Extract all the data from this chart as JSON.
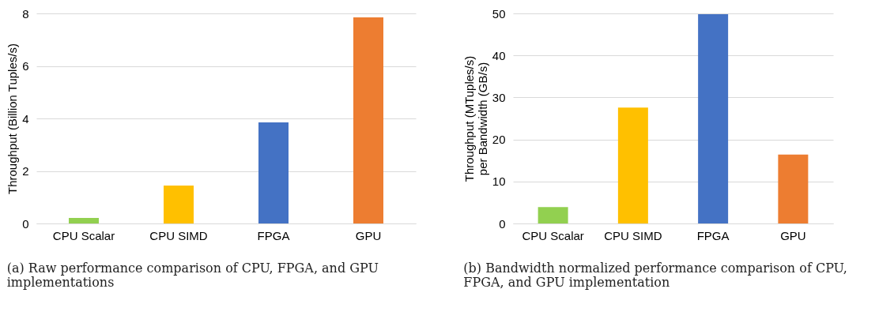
{
  "chart_data": [
    {
      "type": "bar",
      "categories": [
        "CPU Scalar",
        "CPU SIMD",
        "FPGA",
        "GPU"
      ],
      "values": [
        0.21,
        1.44,
        3.85,
        7.85
      ],
      "colors": [
        "#92d050",
        "#ffc000",
        "#4472c4",
        "#ed7d31"
      ],
      "ylabel": "Throughput (Billion Tuples/s)",
      "ylim": [
        0,
        8
      ],
      "yticks": [
        0,
        2,
        4,
        6,
        8
      ],
      "grid": "y",
      "annotations": [
        "(a) Raw performance comparison of CPU, FPGA, and GPU implementations"
      ]
    },
    {
      "type": "bar",
      "categories": [
        "CPU Scalar",
        "CPU SIMD",
        "FPGA",
        "GPU"
      ],
      "values": [
        3.9,
        27.6,
        49.8,
        16.4
      ],
      "colors": [
        "#92d050",
        "#ffc000",
        "#4472c4",
        "#ed7d31"
      ],
      "ylabel": "Throughput (MTuples/s)\nper Bandwidth (GB/s)",
      "ylim": [
        0,
        50
      ],
      "yticks": [
        0,
        10,
        20,
        30,
        40,
        50
      ],
      "grid": "y",
      "annotations": [
        "(b) Bandwidth normalized performance comparison of CPU, FPGA, and GPU implementation"
      ]
    }
  ]
}
